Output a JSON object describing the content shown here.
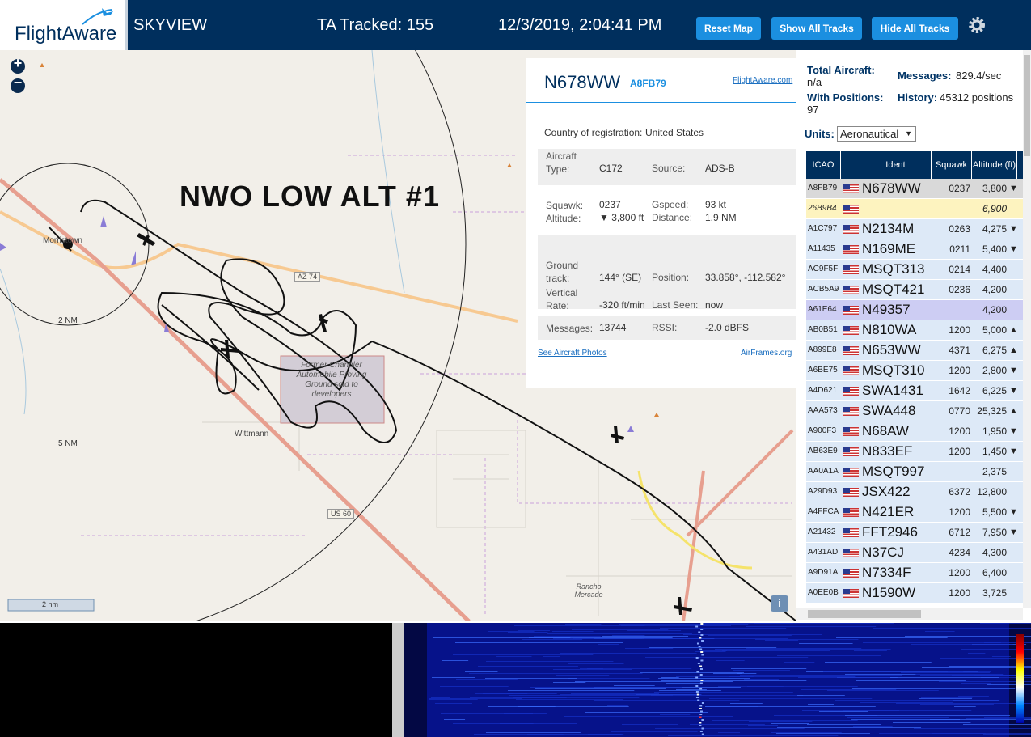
{
  "header": {
    "logo": "FlightAware",
    "app": "SKYVIEW",
    "tracked": "TA Tracked: 155",
    "datetime": "12/3/2019, 2:04:41 PM",
    "buttons": [
      "Reset Map",
      "Show All Tracks",
      "Hide All Tracks"
    ]
  },
  "map": {
    "overlay_title": "NWO LOW ALT #1",
    "labels": {
      "town": "Morristown",
      "ring1": "2 NM",
      "ring2": "5 NM",
      "hwy1": "AZ 74",
      "town2": "Wittmann",
      "hwy2": "US 60",
      "proving": "Former Chandler Automobile Proving Ground sold to developers",
      "rancho": "Rancho Mercado",
      "scale": "2 nm",
      "zoom_in": "+",
      "zoom_out": "−",
      "info": "i"
    }
  },
  "aircraft": {
    "ident": "N678WW",
    "icao": "A8FB79",
    "link": "FlightAware.com",
    "country_label": "Country of registration:",
    "country": "United States",
    "fields": [
      [
        "Aircraft Type:",
        "C172",
        "Source:",
        "ADS-B"
      ],
      [
        "Squawk:",
        "0237",
        "Gspeed:",
        "93 kt"
      ],
      [
        "Altitude:",
        "▼ 3,800 ft",
        "Distance:",
        "1.9 NM"
      ],
      [
        "Ground track:",
        "144° (SE)",
        "Position:",
        "33.858°, -112.582°"
      ],
      [
        "Vertical Rate:",
        "-320 ft/min",
        "Last Seen:",
        "now"
      ],
      [
        "Messages:",
        "13744",
        "RSSI:",
        "-2.0 dBFS"
      ]
    ],
    "photos": "See Aircraft Photos",
    "airframes": "AirFrames.org"
  },
  "stats": {
    "total_label": "Total Aircraft:",
    "total": "n/a",
    "messages_label": "Messages:",
    "messages": "829.4/sec",
    "positions_label": "With Positions:",
    "positions": "97",
    "history_label": "History:",
    "history": "45312 positions",
    "units_label": "Units:",
    "units": "Aeronautical"
  },
  "table": {
    "headers": [
      "ICAO",
      "Ident",
      "Squawk",
      "Altitude (ft)"
    ],
    "rows": [
      {
        "icao": "A8FB79",
        "ident": "N678WW",
        "squawk": "0237",
        "altitude": "3,800",
        "trend": "▼",
        "bg": "#d9d9d9"
      },
      {
        "icao": "26B9B4",
        "altitude": "6,900",
        "bg": "#fdf3bf"
      },
      {
        "icao": "A1C797",
        "ident": "N2134M",
        "squawk": "0263",
        "altitude": "4,275",
        "trend": "▼"
      },
      {
        "icao": "A11435",
        "ident": "N169ME",
        "squawk": "0211",
        "altitude": "5,400",
        "trend": "▼"
      },
      {
        "icao": "AC9F5F",
        "ident": "MSQT313",
        "squawk": "0214",
        "altitude": "4,400"
      },
      {
        "icao": "ACB5A9",
        "ident": "MSQT421",
        "squawk": "0236",
        "altitude": "4,200"
      },
      {
        "icao": "A61E64",
        "ident": "N49357",
        "altitude": "4,200",
        "bg": "#cdcdf3"
      },
      {
        "icao": "AB0B51",
        "ident": "N810WA",
        "squawk": "1200",
        "altitude": "5,000",
        "trend": "▲"
      },
      {
        "icao": "A899E8",
        "ident": "N653WW",
        "squawk": "4371",
        "altitude": "6,275",
        "trend": "▲"
      },
      {
        "icao": "A6BE75",
        "ident": "MSQT310",
        "squawk": "1200",
        "altitude": "2,800",
        "trend": "▼"
      },
      {
        "icao": "A4D621",
        "ident": "SWA1431",
        "squawk": "1642",
        "altitude": "6,225",
        "trend": "▼"
      },
      {
        "icao": "AAA573",
        "ident": "SWA448",
        "squawk": "0770",
        "altitude": "25,325",
        "trend": "▲"
      },
      {
        "icao": "A900F3",
        "ident": "N68AW",
        "squawk": "1200",
        "altitude": "1,950",
        "trend": "▼"
      },
      {
        "icao": "AB63E9",
        "ident": "N833EF",
        "squawk": "1200",
        "altitude": "1,450",
        "trend": "▼"
      },
      {
        "icao": "AA0A1A",
        "ident": "MSQT997",
        "altitude": "2,375"
      },
      {
        "icao": "A29D93",
        "ident": "JSX422",
        "squawk": "6372",
        "altitude": "12,800"
      },
      {
        "icao": "A4FFCA",
        "ident": "N421ER",
        "squawk": "1200",
        "altitude": "5,500",
        "trend": "▼"
      },
      {
        "icao": "A21432",
        "ident": "FFT2946",
        "squawk": "6712",
        "altitude": "7,950",
        "trend": "▼"
      },
      {
        "icao": "A431AD",
        "ident": "N37CJ",
        "squawk": "4234",
        "altitude": "4,300"
      },
      {
        "icao": "A9D91A",
        "ident": "N7334F",
        "squawk": "1200",
        "altitude": "6,400"
      },
      {
        "icao": "A0EE0B",
        "ident": "N1590W",
        "squawk": "1200",
        "altitude": "3,725"
      }
    ]
  }
}
